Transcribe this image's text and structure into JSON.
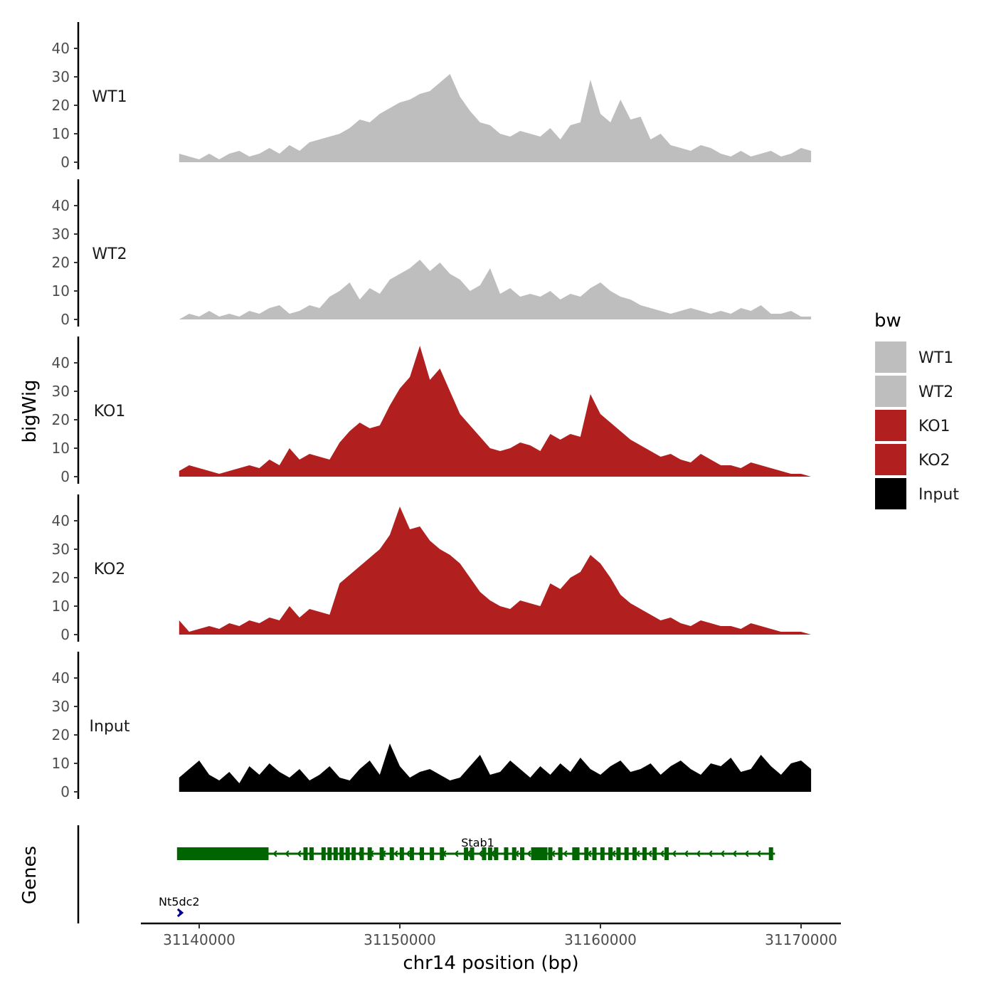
{
  "chart_data": {
    "type": "area",
    "title": "",
    "xlabel": "chr14 position (bp)",
    "ylabel": "bigWig",
    "genes_label": "Genes",
    "xlim": [
      31137500,
      31172000
    ],
    "x_ticks": [
      {
        "value": 31140000,
        "label": "31140000"
      },
      {
        "value": 31150000,
        "label": "31150000"
      },
      {
        "value": 31160000,
        "label": "31160000"
      },
      {
        "value": 31170000,
        "label": "31170000"
      }
    ],
    "ylim": [
      0,
      50
    ],
    "y_ticks": [
      {
        "value": 0,
        "label": "0"
      },
      {
        "value": 10,
        "label": "10"
      },
      {
        "value": 20,
        "label": "20"
      },
      {
        "value": 30,
        "label": "30"
      },
      {
        "value": 40,
        "label": "40"
      }
    ],
    "legend": {
      "title": "bw",
      "position": "right",
      "entries": [
        {
          "label": "WT1",
          "color": "#bebebe"
        },
        {
          "label": "WT2",
          "color": "#bebebe"
        },
        {
          "label": "KO1",
          "color": "#b21f1f"
        },
        {
          "label": "KO2",
          "color": "#b21f1f"
        },
        {
          "label": "Input",
          "color": "#000000"
        }
      ]
    },
    "series": [
      {
        "name": "WT1",
        "color": "#bebebe",
        "x": [
          31139000,
          31139500,
          31140000,
          31140500,
          31141000,
          31141500,
          31142000,
          31142500,
          31143000,
          31143500,
          31144000,
          31144500,
          31145000,
          31145500,
          31146000,
          31146500,
          31147000,
          31147500,
          31148000,
          31148500,
          31149000,
          31149500,
          31150000,
          31150500,
          31151000,
          31151500,
          31152000,
          31152500,
          31153000,
          31153500,
          31154000,
          31154500,
          31155000,
          31155500,
          31156000,
          31156500,
          31157000,
          31157500,
          31158000,
          31158500,
          31159000,
          31159500,
          31160000,
          31160500,
          31161000,
          31161500,
          31162000,
          31162500,
          31163000,
          31163500,
          31164000,
          31164500,
          31165000,
          31165500,
          31166000,
          31166500,
          31167000,
          31167500,
          31168000,
          31168500,
          31169000,
          31169500,
          31170000,
          31170500
        ],
        "y": [
          3,
          2,
          1,
          3,
          1,
          3,
          4,
          2,
          3,
          5,
          3,
          6,
          4,
          7,
          8,
          9,
          10,
          12,
          15,
          14,
          17,
          19,
          21,
          22,
          24,
          25,
          28,
          31,
          23,
          18,
          14,
          13,
          10,
          9,
          11,
          10,
          9,
          12,
          8,
          13,
          14,
          29,
          17,
          14,
          22,
          15,
          16,
          8,
          10,
          6,
          5,
          4,
          6,
          5,
          3,
          2,
          4,
          2,
          3,
          4,
          2,
          3,
          5,
          4
        ]
      },
      {
        "name": "WT2",
        "color": "#bebebe",
        "x": [
          31139000,
          31139500,
          31140000,
          31140500,
          31141000,
          31141500,
          31142000,
          31142500,
          31143000,
          31143500,
          31144000,
          31144500,
          31145000,
          31145500,
          31146000,
          31146500,
          31147000,
          31147500,
          31148000,
          31148500,
          31149000,
          31149500,
          31150000,
          31150500,
          31151000,
          31151500,
          31152000,
          31152500,
          31153000,
          31153500,
          31154000,
          31154500,
          31155000,
          31155500,
          31156000,
          31156500,
          31157000,
          31157500,
          31158000,
          31158500,
          31159000,
          31159500,
          31160000,
          31160500,
          31161000,
          31161500,
          31162000,
          31162500,
          31163000,
          31163500,
          31164000,
          31164500,
          31165000,
          31165500,
          31166000,
          31166500,
          31167000,
          31167500,
          31168000,
          31168500,
          31169000,
          31169500,
          31170000,
          31170500
        ],
        "y": [
          0,
          2,
          1,
          3,
          1,
          2,
          1,
          3,
          2,
          4,
          5,
          2,
          3,
          5,
          4,
          8,
          10,
          13,
          7,
          11,
          9,
          14,
          16,
          18,
          21,
          17,
          20,
          16,
          14,
          10,
          12,
          18,
          9,
          11,
          8,
          9,
          8,
          10,
          7,
          9,
          8,
          11,
          13,
          10,
          8,
          7,
          5,
          4,
          3,
          2,
          3,
          4,
          3,
          2,
          3,
          2,
          4,
          3,
          5,
          2,
          2,
          3,
          1,
          1
        ]
      },
      {
        "name": "KO1",
        "color": "#b21f1f",
        "x": [
          31139000,
          31139500,
          31140000,
          31140500,
          31141000,
          31141500,
          31142000,
          31142500,
          31143000,
          31143500,
          31144000,
          31144500,
          31145000,
          31145500,
          31146000,
          31146500,
          31147000,
          31147500,
          31148000,
          31148500,
          31149000,
          31149500,
          31150000,
          31150500,
          31151000,
          31151500,
          31152000,
          31152500,
          31153000,
          31153500,
          31154000,
          31154500,
          31155000,
          31155500,
          31156000,
          31156500,
          31157000,
          31157500,
          31158000,
          31158500,
          31159000,
          31159500,
          31160000,
          31160500,
          31161000,
          31161500,
          31162000,
          31162500,
          31163000,
          31163500,
          31164000,
          31164500,
          31165000,
          31165500,
          31166000,
          31166500,
          31167000,
          31167500,
          31168000,
          31168500,
          31169000,
          31169500,
          31170000,
          31170500
        ],
        "y": [
          2,
          4,
          3,
          2,
          1,
          2,
          3,
          4,
          3,
          6,
          4,
          10,
          6,
          8,
          7,
          6,
          12,
          16,
          19,
          17,
          18,
          25,
          31,
          35,
          46,
          34,
          38,
          30,
          22,
          18,
          14,
          10,
          9,
          10,
          12,
          11,
          9,
          15,
          13,
          15,
          14,
          29,
          22,
          19,
          16,
          13,
          11,
          9,
          7,
          8,
          6,
          5,
          8,
          6,
          4,
          4,
          3,
          5,
          4,
          3,
          2,
          1,
          1,
          0
        ]
      },
      {
        "name": "KO2",
        "color": "#b21f1f",
        "x": [
          31139000,
          31139500,
          31140000,
          31140500,
          31141000,
          31141500,
          31142000,
          31142500,
          31143000,
          31143500,
          31144000,
          31144500,
          31145000,
          31145500,
          31146000,
          31146500,
          31147000,
          31147500,
          31148000,
          31148500,
          31149000,
          31149500,
          31150000,
          31150500,
          31151000,
          31151500,
          31152000,
          31152500,
          31153000,
          31153500,
          31154000,
          31154500,
          31155000,
          31155500,
          31156000,
          31156500,
          31157000,
          31157500,
          31158000,
          31158500,
          31159000,
          31159500,
          31160000,
          31160500,
          31161000,
          31161500,
          31162000,
          31162500,
          31163000,
          31163500,
          31164000,
          31164500,
          31165000,
          31165500,
          31166000,
          31166500,
          31167000,
          31167500,
          31168000,
          31168500,
          31169000,
          31169500,
          31170000,
          31170500
        ],
        "y": [
          5,
          1,
          2,
          3,
          2,
          4,
          3,
          5,
          4,
          6,
          5,
          10,
          6,
          9,
          8,
          7,
          18,
          21,
          24,
          27,
          30,
          35,
          45,
          37,
          38,
          33,
          30,
          28,
          25,
          20,
          15,
          12,
          10,
          9,
          12,
          11,
          10,
          18,
          16,
          20,
          22,
          28,
          25,
          20,
          14,
          11,
          9,
          7,
          5,
          6,
          4,
          3,
          5,
          4,
          3,
          3,
          2,
          4,
          3,
          2,
          1,
          1,
          1,
          0
        ]
      },
      {
        "name": "Input",
        "color": "#000000",
        "x": [
          31139000,
          31139500,
          31140000,
          31140500,
          31141000,
          31141500,
          31142000,
          31142500,
          31143000,
          31143500,
          31144000,
          31144500,
          31145000,
          31145500,
          31146000,
          31146500,
          31147000,
          31147500,
          31148000,
          31148500,
          31149000,
          31149500,
          31150000,
          31150500,
          31151000,
          31151500,
          31152000,
          31152500,
          31153000,
          31153500,
          31154000,
          31154500,
          31155000,
          31155500,
          31156000,
          31156500,
          31157000,
          31157500,
          31158000,
          31158500,
          31159000,
          31159500,
          31160000,
          31160500,
          31161000,
          31161500,
          31162000,
          31162500,
          31163000,
          31163500,
          31164000,
          31164500,
          31165000,
          31165500,
          31166000,
          31166500,
          31167000,
          31167500,
          31168000,
          31168500,
          31169000,
          31169500,
          31170000,
          31170500
        ],
        "y": [
          5,
          8,
          11,
          6,
          4,
          7,
          3,
          9,
          6,
          10,
          7,
          5,
          8,
          4,
          6,
          9,
          5,
          4,
          8,
          11,
          6,
          17,
          9,
          5,
          7,
          8,
          6,
          4,
          5,
          9,
          13,
          6,
          7,
          11,
          8,
          5,
          9,
          6,
          10,
          7,
          12,
          8,
          6,
          9,
          11,
          7,
          8,
          10,
          6,
          9,
          11,
          8,
          6,
          10,
          9,
          12,
          7,
          8,
          13,
          9,
          6,
          10,
          11,
          8
        ]
      }
    ],
    "genes": [
      {
        "name": "Stab1",
        "start": 31139000,
        "end": 31168700,
        "strand": "-",
        "color": "#006400",
        "exons": [
          31139000,
          31139150,
          31139300,
          31139450,
          31139600,
          31139750,
          31139900,
          31140050,
          31140200,
          31140350,
          31140500,
          31140650,
          31140800,
          31140950,
          31141100,
          31141250,
          31141400,
          31141550,
          31141700,
          31141850,
          31142000,
          31142200,
          31142350,
          31142500,
          31142650,
          31142800,
          31143000,
          31143200,
          31143350,
          31145300,
          31145600,
          31146200,
          31146500,
          31146800,
          31147100,
          31147400,
          31147700,
          31148100,
          31148500,
          31149100,
          31149600,
          31150100,
          31150600,
          31151100,
          31151600,
          31152100,
          31153300,
          31153600,
          31154200,
          31154500,
          31154800,
          31155300,
          31155700,
          31156100,
          31156650,
          31156800,
          31156950,
          31157100,
          31157250,
          31157500,
          31158000,
          31158700,
          31158850,
          31159300,
          31159700,
          31160100,
          31160500,
          31160900,
          31161300,
          31161700,
          31162200,
          31162700,
          31163300,
          31168500
        ]
      },
      {
        "name": "Nt5dc2",
        "start": 31139000,
        "end": 31139150,
        "strand": "+",
        "color": "#00008b",
        "exons": []
      }
    ]
  }
}
